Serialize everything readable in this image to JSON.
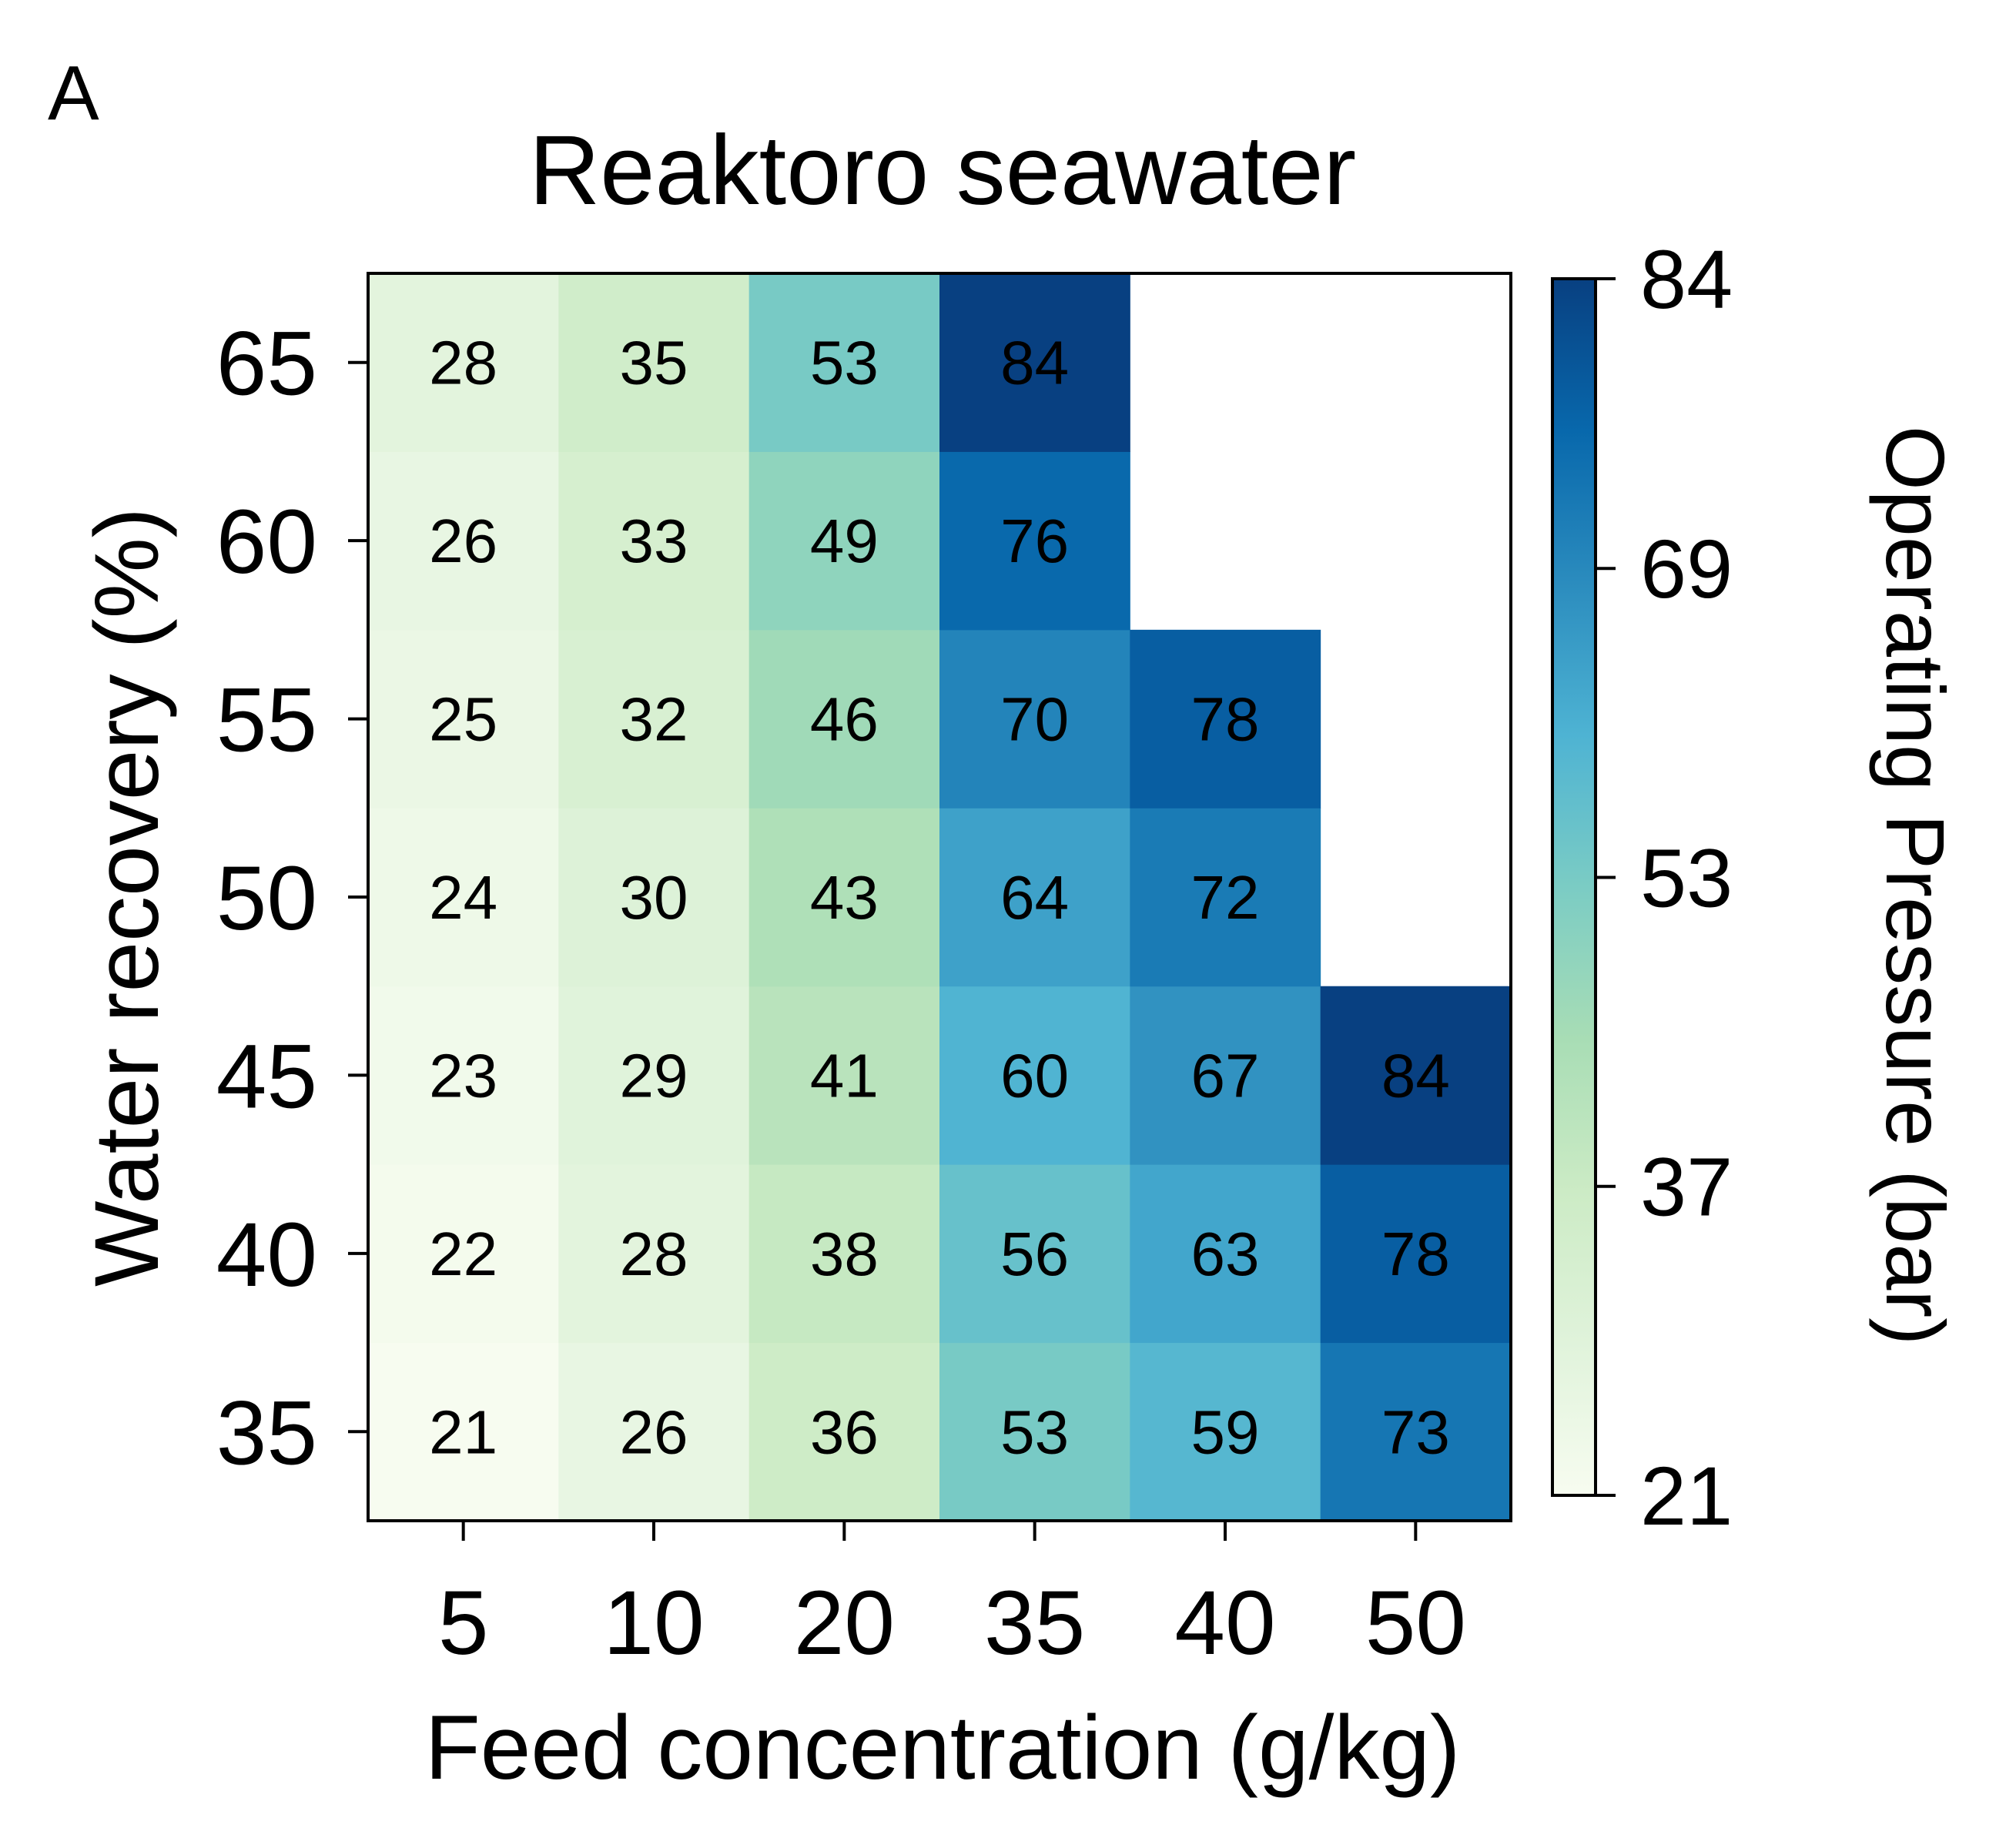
{
  "chart_data": {
    "type": "heatmap",
    "panel_label": "A",
    "title": "Reaktoro seawater",
    "xlabel": "Feed concentration (g/kg)",
    "ylabel": "Water recovery (%)",
    "x_categories": [
      "5",
      "10",
      "20",
      "35",
      "40",
      "50"
    ],
    "y_categories": [
      "35",
      "40",
      "45",
      "50",
      "55",
      "60",
      "65"
    ],
    "values": [
      [
        21,
        26,
        36,
        53,
        59,
        73
      ],
      [
        22,
        28,
        38,
        56,
        63,
        78
      ],
      [
        23,
        29,
        41,
        60,
        67,
        84
      ],
      [
        24,
        30,
        43,
        64,
        72,
        null
      ],
      [
        25,
        32,
        46,
        70,
        78,
        null
      ],
      [
        26,
        33,
        49,
        76,
        null,
        null
      ],
      [
        28,
        35,
        53,
        84,
        null,
        null
      ]
    ],
    "colorbar": {
      "label": "Operating Pressure (bar)",
      "min": 21,
      "max": 84,
      "ticks": [
        21,
        37,
        53,
        69,
        84
      ],
      "colormap": "GnBu"
    },
    "cell_annotations": true,
    "grid": false
  }
}
